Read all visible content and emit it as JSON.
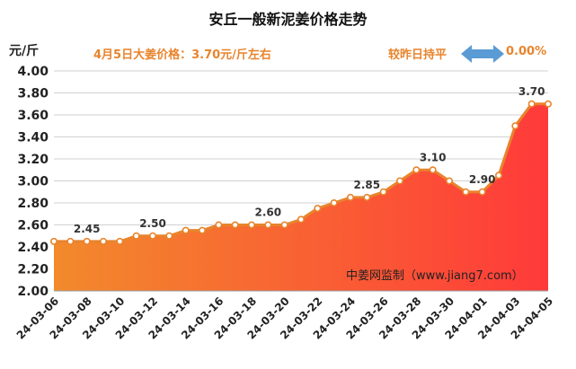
{
  "header": {
    "title": "安丘一般新泥姜价格走势",
    "unit": "元/斤",
    "today_price": "4月5日大姜价格：3.70元/斤左右",
    "comparison": "较昨日持平",
    "change_pct": "0.00%"
  },
  "source": "中姜网监制（www.jiang7.com）",
  "colors": {
    "line": "#e8842d",
    "area_top": "#ff3a3a",
    "area_bottom": "#f28a2c",
    "arrow": "#5b9bd5",
    "accent_text": "#e8842d"
  },
  "chart_data": {
    "type": "area",
    "title": "安丘一般新泥姜价格走势",
    "ylabel": "元/斤",
    "xlabel": "",
    "ylim": [
      2.0,
      4.0
    ],
    "yticks": [
      "2.00",
      "2.20",
      "2.40",
      "2.60",
      "2.80",
      "3.00",
      "3.20",
      "3.40",
      "3.60",
      "3.80",
      "4.00"
    ],
    "grid": true,
    "x": [
      "24-03-06",
      "24-03-07",
      "24-03-08",
      "24-03-09",
      "24-03-10",
      "24-03-11",
      "24-03-12",
      "24-03-13",
      "24-03-14",
      "24-03-15",
      "24-03-16",
      "24-03-17",
      "24-03-18",
      "24-03-19",
      "24-03-20",
      "24-03-21",
      "24-03-22",
      "24-03-23",
      "24-03-24",
      "24-03-25",
      "24-03-26",
      "24-03-27",
      "24-03-28",
      "24-03-29",
      "24-03-30",
      "24-03-31",
      "24-04-01",
      "24-04-02",
      "24-04-03",
      "24-04-04",
      "24-04-05"
    ],
    "xtick_labels": [
      "24-03-06",
      "24-03-08",
      "24-03-10",
      "24-03-12",
      "24-03-14",
      "24-03-16",
      "24-03-18",
      "24-03-20",
      "24-03-22",
      "24-03-24",
      "24-03-26",
      "24-03-28",
      "24-03-30",
      "24-04-01",
      "24-04-03",
      "24-04-05"
    ],
    "values": [
      2.45,
      2.45,
      2.45,
      2.45,
      2.45,
      2.5,
      2.5,
      2.5,
      2.55,
      2.55,
      2.6,
      2.6,
      2.6,
      2.6,
      2.6,
      2.65,
      2.75,
      2.8,
      2.85,
      2.85,
      2.9,
      3.0,
      3.1,
      3.1,
      3.0,
      2.9,
      2.9,
      3.05,
      3.5,
      3.7,
      3.7
    ],
    "annotations": [
      {
        "index": 2,
        "label": "2.45"
      },
      {
        "index": 6,
        "label": "2.50"
      },
      {
        "index": 13,
        "label": "2.60"
      },
      {
        "index": 19,
        "label": "2.85"
      },
      {
        "index": 23,
        "label": "3.10"
      },
      {
        "index": 26,
        "label": "2.90"
      },
      {
        "index": 29,
        "label": "3.70"
      }
    ]
  }
}
